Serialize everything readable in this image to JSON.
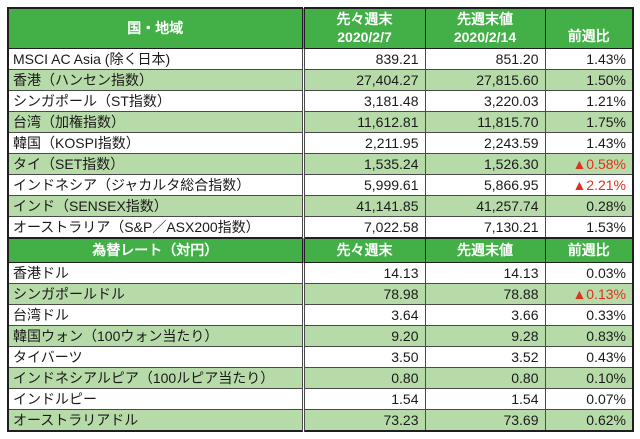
{
  "colors": {
    "header_green": "#43b047",
    "row_green": "#b7dba8",
    "negative_red": "#e0301e",
    "border_dark": "#1f1f1f"
  },
  "chart_data": [
    {
      "type": "table",
      "title": "国・地域",
      "header": {
        "col1": "国・地域",
        "col2_line1": "先々週末",
        "col2_line2": "2020/2/7",
        "col3_line1": "先週末値",
        "col3_line2": "2020/2/14",
        "col4": "前週比"
      },
      "rows": [
        {
          "label": "MSCI AC Asia (除く日本)",
          "prev": "839.21",
          "last": "851.20",
          "change": "1.43%",
          "negative": false
        },
        {
          "label": "香港（ハンセン指数）",
          "prev": "27,404.27",
          "last": "27,815.60",
          "change": "1.50%",
          "negative": false
        },
        {
          "label": "シンガポール（ST指数）",
          "prev": "3,181.48",
          "last": "3,220.03",
          "change": "1.21%",
          "negative": false
        },
        {
          "label": "台湾（加権指数）",
          "prev": "11,612.81",
          "last": "11,815.70",
          "change": "1.75%",
          "negative": false
        },
        {
          "label": "韓国（KOSPI指数）",
          "prev": "2,211.95",
          "last": "2,243.59",
          "change": "1.43%",
          "negative": false
        },
        {
          "label": "タイ（SET指数）",
          "prev": "1,535.24",
          "last": "1,526.30",
          "change": "▲0.58%",
          "negative": true
        },
        {
          "label": "インドネシア（ジャカルタ総合指数）",
          "prev": "5,999.61",
          "last": "5,866.95",
          "change": "▲2.21%",
          "negative": true
        },
        {
          "label": "インド（SENSEX指数）",
          "prev": "41,141.85",
          "last": "41,257.74",
          "change": "0.28%",
          "negative": false
        },
        {
          "label": "オーストラリア（S&P／ASX200指数）",
          "prev": "7,022.58",
          "last": "7,130.21",
          "change": "1.53%",
          "negative": false
        }
      ]
    },
    {
      "type": "table",
      "title": "為替レート（対円）",
      "header": {
        "col1": "為替レート（対円）",
        "col2": "先々週末",
        "col3": "先週末値",
        "col4": "前週比"
      },
      "rows": [
        {
          "label": "香港ドル",
          "prev": "14.13",
          "last": "14.13",
          "change": "0.03%",
          "negative": false
        },
        {
          "label": "シンガポールドル",
          "prev": "78.98",
          "last": "78.88",
          "change": "▲0.13%",
          "negative": true
        },
        {
          "label": "台湾ドル",
          "prev": "3.64",
          "last": "3.66",
          "change": "0.33%",
          "negative": false
        },
        {
          "label": "韓国ウォン（100ウォン当たり）",
          "prev": "9.20",
          "last": "9.28",
          "change": "0.83%",
          "negative": false
        },
        {
          "label": "タイバーツ",
          "prev": "3.50",
          "last": "3.52",
          "change": "0.43%",
          "negative": false
        },
        {
          "label": "インドネシアルピア（100ルピア当たり）",
          "prev": "0.80",
          "last": "0.80",
          "change": "0.10%",
          "negative": false
        },
        {
          "label": "インドルピー",
          "prev": "1.54",
          "last": "1.54",
          "change": "0.07%",
          "negative": false
        },
        {
          "label": "オーストラリアドル",
          "prev": "73.23",
          "last": "73.69",
          "change": "0.62%",
          "negative": false
        }
      ]
    }
  ]
}
